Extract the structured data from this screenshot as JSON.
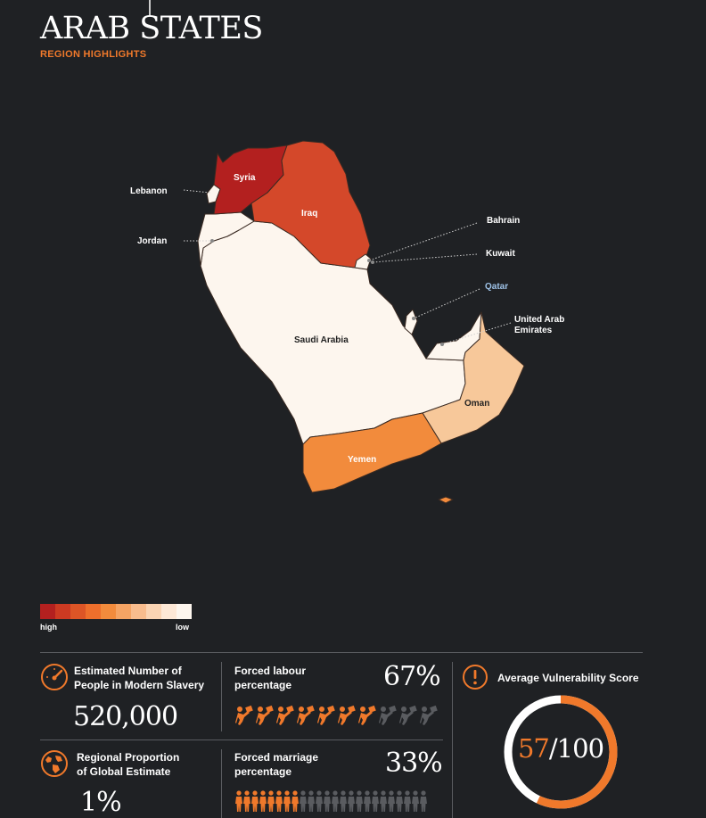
{
  "header": {
    "title": "ARAB STATES",
    "subtitle": "REGION HIGHLIGHTS"
  },
  "colors": {
    "background": "#1f2124",
    "accent": "#f0792b",
    "syria": "#b3201f",
    "iraq": "#d4482a",
    "yemen": "#f28b3c",
    "oman": "#f7c89a",
    "low": "#fdf6ee",
    "inactive_icon": "#5a5c60",
    "qatar_label": "#9fc3e8"
  },
  "map": {
    "labels": {
      "syria": "Syria",
      "iraq": "Iraq",
      "lebanon": "Lebanon",
      "jordan": "Jordan",
      "bahrain": "Bahrain",
      "kuwait": "Kuwait",
      "qatar": "Qatar",
      "uae_line1": "United Arab",
      "uae_line2": "Emirates",
      "saudi": "Saudi Arabia",
      "oman": "Oman",
      "yemen": "Yemen"
    }
  },
  "legend": {
    "high_label": "high",
    "low_label": "low",
    "colors": [
      "#b3201f",
      "#cc3a22",
      "#dd5526",
      "#ee6f2c",
      "#f28b3c",
      "#f5a464",
      "#f8bc8d",
      "#fad4b3",
      "#fde8d6",
      "#fdf6ee"
    ]
  },
  "stats": {
    "estimated": {
      "label_line1": "Estimated Number of",
      "label_line2": "People in Modern Slavery",
      "value": "520,000",
      "icon": "gauge-icon"
    },
    "proportion": {
      "label_line1": "Regional Proportion",
      "label_line2": "of Global Estimate",
      "value": "1%",
      "icon": "globe-icon"
    },
    "forced_labour": {
      "label_line1": "Forced labour",
      "label_line2": "percentage",
      "value": "67%",
      "icons_total": 10,
      "icons_active": 7,
      "icon": "worker-pushing-icon"
    },
    "forced_marriage": {
      "label_line1": "Forced marriage",
      "label_line2": "percentage",
      "value": "33%",
      "icons_total": 24,
      "icons_active": 8,
      "icon": "person-icon"
    },
    "vulnerability": {
      "label": "Average Vulnerability Score",
      "score": "57",
      "max": "/100",
      "score_value": 57,
      "max_value": 100,
      "icon": "alert-icon"
    }
  }
}
